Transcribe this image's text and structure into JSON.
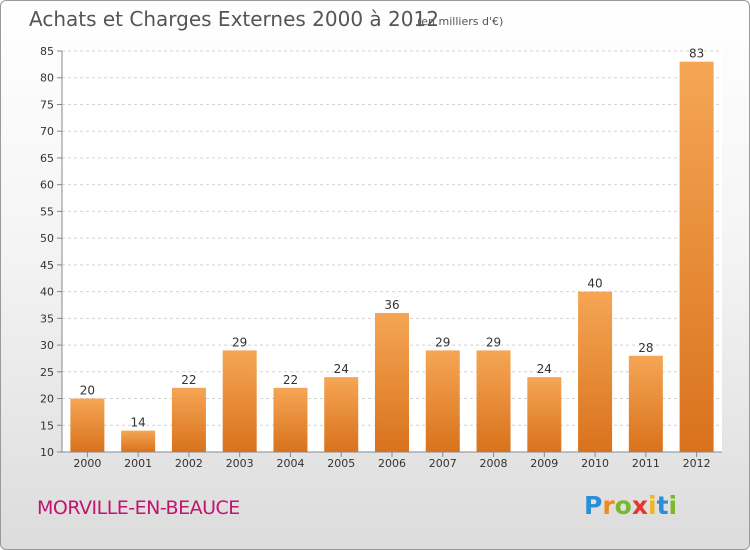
{
  "title": "Achats et Charges Externes 2000 à 2012",
  "unit": "(en milliers d'€)",
  "commune": "MORVILLE-EN-BEAUCE",
  "logo": {
    "letters": [
      "P",
      "r",
      "o",
      "x",
      "i",
      "t",
      "i"
    ],
    "colors": [
      "#2a8fd6",
      "#f28a1a",
      "#7ab929",
      "#e8352f",
      "#f2b51a",
      "#2a8fd6",
      "#7ab929"
    ]
  },
  "colors": {
    "bar_top": "#f5a655",
    "bar_bottom": "#d9721c",
    "title": "#555555",
    "commune": "#c0146e"
  },
  "chart_data": {
    "type": "bar",
    "categories": [
      "2000",
      "2001",
      "2002",
      "2003",
      "2004",
      "2005",
      "2006",
      "2007",
      "2008",
      "2009",
      "2010",
      "2011",
      "2012"
    ],
    "values": [
      20,
      14,
      22,
      29,
      22,
      24,
      36,
      29,
      29,
      24,
      40,
      28,
      83
    ],
    "ylim": [
      10,
      85
    ],
    "yticks": [
      10,
      15,
      20,
      25,
      30,
      35,
      40,
      45,
      50,
      55,
      60,
      65,
      70,
      75,
      80,
      85
    ],
    "grid": true
  }
}
